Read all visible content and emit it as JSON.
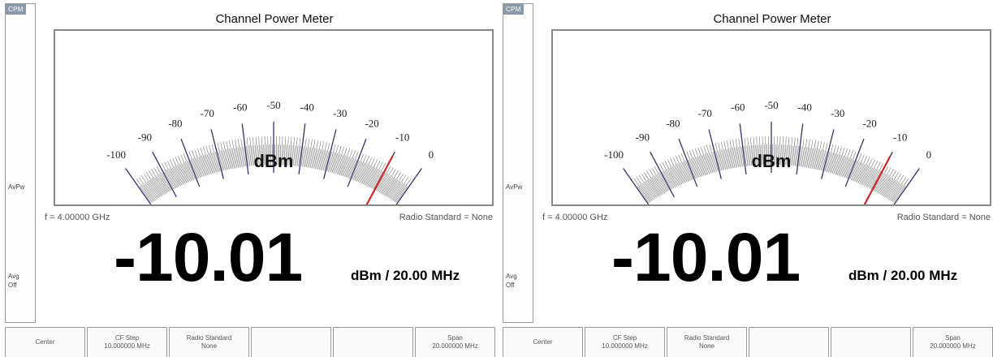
{
  "panels": [
    {
      "side_tag": "CPM",
      "side_avpw": "AvPw",
      "side_avg": "Avg",
      "side_avg_state": "Off",
      "title": "Channel Power Meter",
      "meter_unit": "dBm",
      "meter_scale_labels": [
        "-100",
        "-90",
        "-80",
        "-70",
        "-60",
        "-50",
        "-40",
        "-30",
        "-20",
        "-10",
        "0"
      ],
      "meter_scale_values": [
        -100,
        -90,
        -80,
        -70,
        -60,
        -50,
        -40,
        -30,
        -20,
        -10,
        0
      ],
      "needle_value_dbm": -10.01,
      "frequency_text": "f = 4.00000 GHz",
      "radio_standard_text": "Radio Standard = None",
      "reading_value": "-10.01",
      "reading_unit": "dBm / 20.00 MHz",
      "softkeys": [
        {
          "label": "Center",
          "value": ""
        },
        {
          "label": "CF Step",
          "value": "10.000000 MHz"
        },
        {
          "label": "Radio Standard",
          "value": "None"
        },
        {
          "label": "",
          "value": ""
        },
        {
          "label": "",
          "value": ""
        },
        {
          "label": "Span",
          "value": "20.000000 MHz"
        }
      ]
    },
    {
      "side_tag": "CPM",
      "side_avpw": "AvPw",
      "side_avg": "Avg",
      "side_avg_state": "Off",
      "title": "Channel Power Meter",
      "meter_unit": "dBm",
      "meter_scale_labels": [
        "-100",
        "-90",
        "-80",
        "-70",
        "-60",
        "-50",
        "-40",
        "-30",
        "-20",
        "-10",
        "0"
      ],
      "meter_scale_values": [
        -100,
        -90,
        -80,
        -70,
        -60,
        -50,
        -40,
        -30,
        -20,
        -10,
        0
      ],
      "needle_value_dbm": -10.01,
      "frequency_text": "f = 4.00000 GHz",
      "radio_standard_text": "Radio Standard = None",
      "reading_value": "-10.01",
      "reading_unit": "dBm / 20.00 MHz",
      "softkeys": [
        {
          "label": "Center",
          "value": ""
        },
        {
          "label": "CF Step",
          "value": "10.000000 MHz"
        },
        {
          "label": "Radio Standard",
          "value": "None"
        },
        {
          "label": "",
          "value": ""
        },
        {
          "label": "",
          "value": ""
        },
        {
          "label": "Span",
          "value": "20.000000 MHz"
        }
      ]
    }
  ],
  "colors": {
    "needle": "#cc2a2a",
    "tick": "#777777",
    "major_tick": "#333366"
  }
}
